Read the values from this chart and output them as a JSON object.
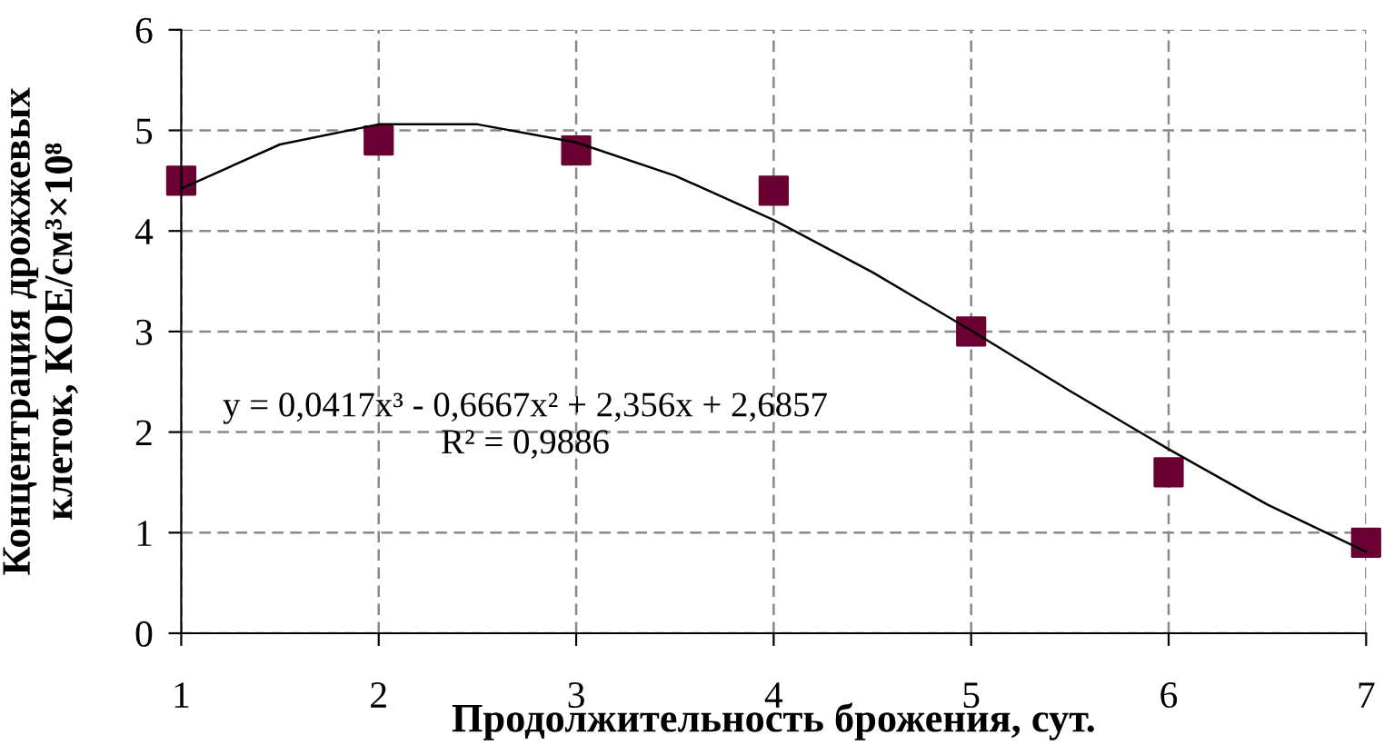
{
  "chart_data": {
    "type": "scatter",
    "xlabel": "Продолжительность брожения, сут.",
    "ylabel": "Концентрация дрожжевых\nклеток, КОЕ/см³×10⁸",
    "x": [
      1,
      2,
      3,
      4,
      5,
      6,
      7
    ],
    "series": [
      {
        "color": "#6b0033",
        "marker": "square",
        "values": [
          4.5,
          4.9,
          4.8,
          4.4,
          3.0,
          1.6,
          0.9
        ]
      },
      {
        "type": "line",
        "color": "#000000",
        "marker": "none",
        "line_style": "solid",
        "x": [
          1,
          1.5,
          2,
          2.5,
          3,
          3.5,
          4,
          4.5,
          5,
          5.5,
          6,
          6.5,
          7
        ],
        "values": [
          4.42,
          4.86,
          5.06,
          5.06,
          4.88,
          4.55,
          4.11,
          3.59,
          3.01,
          2.41,
          1.83,
          1.28,
          0.81
        ]
      }
    ],
    "annotations": [
      "y = 0,0417x³ - 0,6667x² + 2,356x + 2,6857\nR² = 0,9886"
    ],
    "xlim": [
      1,
      7
    ],
    "xticks": [
      1,
      2,
      3,
      4,
      5,
      6,
      7
    ],
    "ylim": [
      0,
      6
    ],
    "yticks": [
      0,
      1,
      2,
      3,
      4,
      5,
      6
    ],
    "grid": true
  }
}
